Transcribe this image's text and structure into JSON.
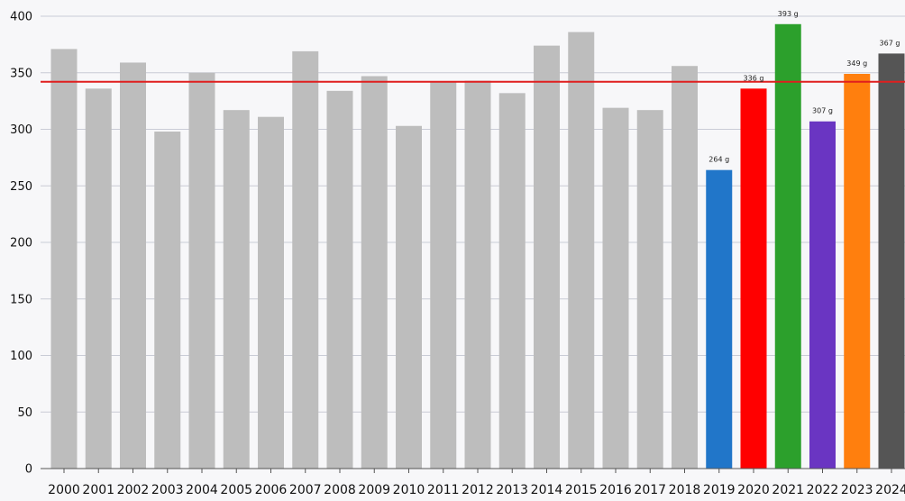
{
  "chart_data": {
    "type": "bar",
    "title": "",
    "xlabel": "",
    "ylabel": "",
    "ylim": [
      0,
      400
    ],
    "yticks": [
      0,
      50,
      100,
      150,
      200,
      250,
      300,
      350,
      400
    ],
    "grid": true,
    "legend": "none",
    "categories": [
      "2000",
      "2001",
      "2002",
      "2003",
      "2004",
      "2005",
      "2006",
      "2007",
      "2008",
      "2009",
      "2010",
      "2011",
      "2012",
      "2013",
      "2014",
      "2015",
      "2016",
      "2017",
      "2018",
      "2019",
      "2020",
      "2021",
      "2022",
      "2023",
      "2024"
    ],
    "values": [
      371,
      336,
      359,
      298,
      350,
      317,
      311,
      369,
      334,
      347,
      303,
      342,
      343,
      332,
      374,
      386,
      319,
      317,
      356,
      264,
      336,
      393,
      307,
      349,
      367
    ],
    "colors": [
      "#bdbdbd",
      "#bdbdbd",
      "#bdbdbd",
      "#bdbdbd",
      "#bdbdbd",
      "#bdbdbd",
      "#bdbdbd",
      "#bdbdbd",
      "#bdbdbd",
      "#bdbdbd",
      "#bdbdbd",
      "#bdbdbd",
      "#bdbdbd",
      "#bdbdbd",
      "#bdbdbd",
      "#bdbdbd",
      "#bdbdbd",
      "#bdbdbd",
      "#bdbdbd",
      "#2176c9",
      "#ff0000",
      "#2ca02c",
      "#6a35c2",
      "#ff7f0e",
      "#555555"
    ],
    "data_labels": [
      "",
      "",
      "",
      "",
      "",
      "",
      "",
      "",
      "",
      "",
      "",
      "",
      "",
      "",
      "",
      "",
      "",
      "",
      "",
      "264 g",
      "336 g",
      "393 g",
      "307 g",
      "349 g",
      "367 g"
    ],
    "reference_line": {
      "value": 342,
      "color": "#e01e1e"
    },
    "grid_color": "#c9ccd6",
    "background": "#f7f7f9"
  }
}
